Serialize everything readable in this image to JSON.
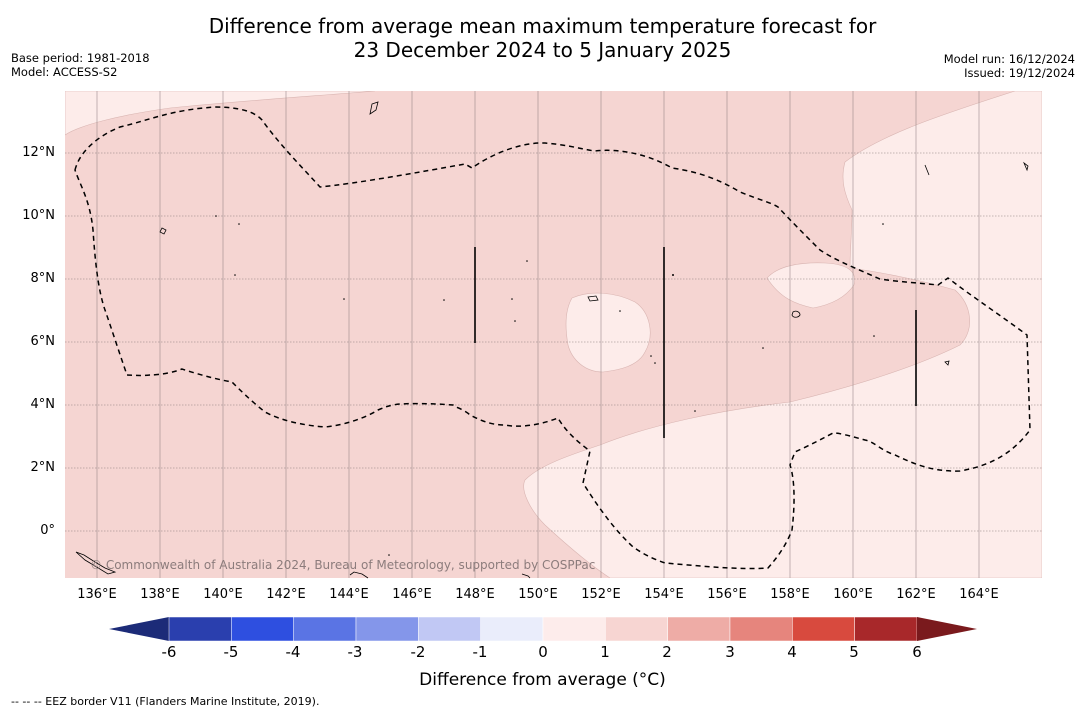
{
  "title_line1": "Difference from average mean maximum temperature forecast for",
  "title_line2": "23 December 2024 to 5 January 2025",
  "base_period": "Base period: 1981-2018",
  "model": "Model: ACCESS-S2",
  "model_run": "Model run: 16/12/2024",
  "issued": "Issued: 19/12/2024",
  "latitudes": [
    "12°N",
    "10°N",
    "8°N",
    "6°N",
    "4°N",
    "2°N",
    "0°"
  ],
  "longitudes": [
    "136°E",
    "138°E",
    "140°E",
    "142°E",
    "144°E",
    "146°E",
    "148°E",
    "150°E",
    "152°E",
    "154°E",
    "156°E",
    "158°E",
    "160°E",
    "162°E",
    "164°E"
  ],
  "copyright": "© Commonwealth of Australia 2024, Bureau of Meteorology, supported by COSPPac",
  "colorbar": {
    "title": "Difference from average (°C)",
    "ticks": [
      "-6",
      "-5",
      "-4",
      "-3",
      "-2",
      "-1",
      "0",
      "1",
      "2",
      "3",
      "4",
      "5",
      "6"
    ],
    "colors": [
      "#2a3fae",
      "#2e4fe0",
      "#5a74e4",
      "#8496ea",
      "#c1c8f4",
      "#eaedfb",
      "#fdeceb",
      "#f7d5d2",
      "#eeaca6",
      "#e6857d",
      "#d84a3e",
      "#a8282a"
    ],
    "under_color": "#1c2b78",
    "over_color": "#7a1a1d"
  },
  "legend_note": "--  --  -- EEZ border V11 (Flanders Marine Institute, 2019).",
  "colors": {
    "anomaly_1_2": "#f5d5d2",
    "anomaly_0_1": "#fdecea",
    "gridline": "#9a8a8a"
  }
}
